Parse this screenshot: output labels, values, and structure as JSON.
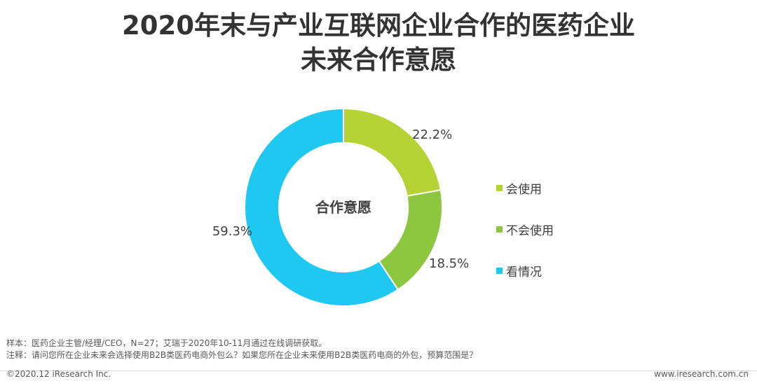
{
  "title_line1": "2020年末与产业互联网企业合作的医药企业",
  "title_line2": "未来合作意愿",
  "chart_data": {
    "type": "pie",
    "donut": true,
    "center_label": "合作意愿",
    "slices": [
      {
        "label": "会使用",
        "value": 22.2,
        "display": "22.2%",
        "color": "#b5d334"
      },
      {
        "label": "不会使用",
        "value": 18.5,
        "display": "18.5%",
        "color": "#8dc63f"
      },
      {
        "label": "看情况",
        "value": 59.3,
        "display": "59.3%",
        "color": "#1ec8f0"
      }
    ],
    "legend_position": "right"
  },
  "footnotes": {
    "sample": "样本：医药企业主管/经理/CEO，N=27；艾瑞于2020年10-11月通过在线调研获取。",
    "note": "注释：请问您所在企业未来会选择使用B2B类医药电商外包么？如果您所在企业未来使用B2B类医药电商的外包，预算范围是？"
  },
  "footer": {
    "copyright": "©2020.12 iResearch Inc.",
    "website": "www.iresearch.com.cn"
  }
}
